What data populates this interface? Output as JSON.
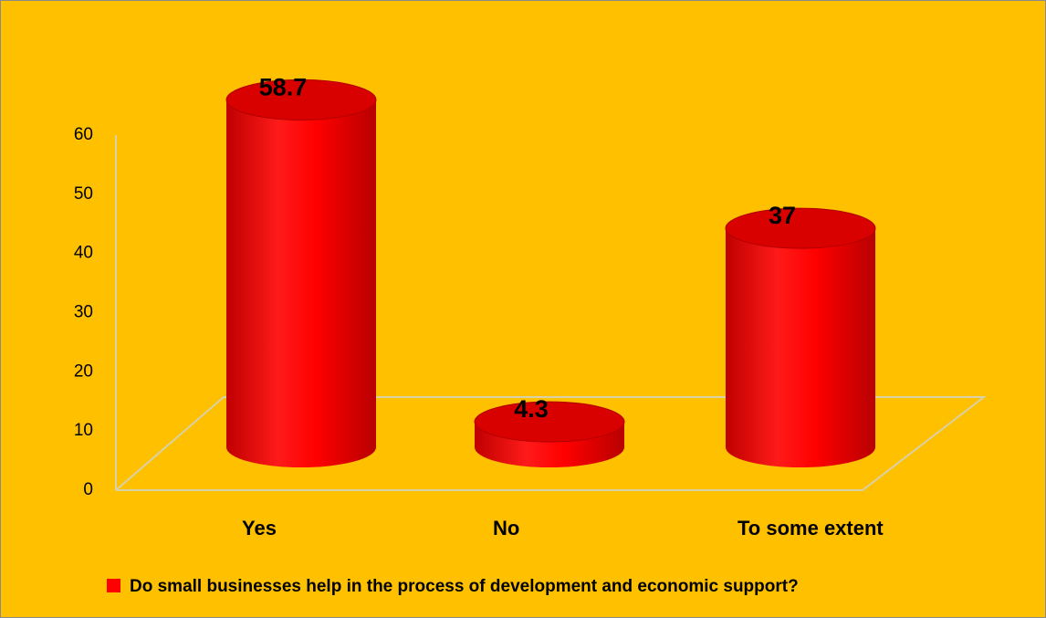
{
  "chart_data": {
    "type": "cylinder",
    "categories": [
      "Yes",
      "No",
      "To some extent"
    ],
    "series": [
      {
        "name": "Do small businesses help in the process of development and economic support?",
        "color": "#ff0000",
        "values": [
          58.7,
          4.3,
          37
        ]
      }
    ],
    "ylim": [
      0,
      60
    ],
    "yticks": [
      0,
      10,
      20,
      30,
      40,
      50,
      60
    ],
    "grid": false,
    "legend": "bottom"
  }
}
